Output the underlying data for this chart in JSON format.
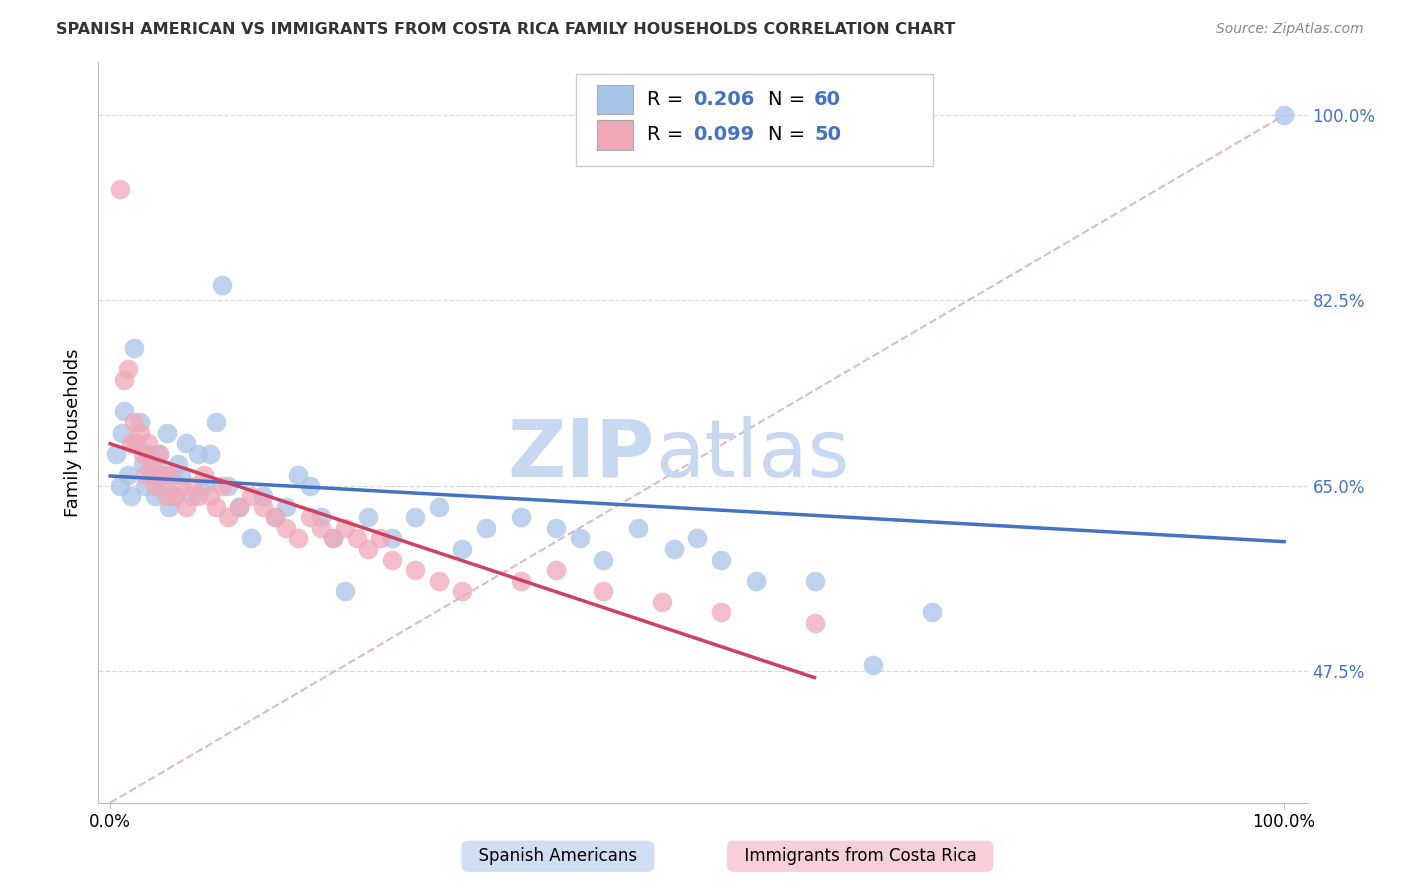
{
  "title": "SPANISH AMERICAN VS IMMIGRANTS FROM COSTA RICA FAMILY HOUSEHOLDS CORRELATION CHART",
  "source": "Source: ZipAtlas.com",
  "ylabel": "Family Households",
  "color_blue": "#a8c4e8",
  "color_pink": "#f0a8b8",
  "line_blue": "#4472c4",
  "line_pink": "#d04060",
  "line_dashed_color": "#c8a0a8",
  "r_blue": 0.206,
  "n_blue": 60,
  "r_pink": 0.099,
  "n_pink": 50,
  "ytick_vals": [
    0.475,
    0.65,
    0.825,
    1.0
  ],
  "ytick_labels": [
    "47.5%",
    "65.0%",
    "82.5%",
    "100.0%"
  ],
  "xtick_vals": [
    0.0,
    1.0
  ],
  "xtick_labels": [
    "0.0%",
    "100.0%"
  ],
  "watermark_zip_color": "#c8d8f0",
  "watermark_atlas_color": "#c8d8f0",
  "grid_color": "#d8d8d8",
  "legend_box_facecolor": "#ffffff",
  "legend_border_color": "#cccccc",
  "title_color": "#333333",
  "source_color": "#888888",
  "ylim_min": 0.35,
  "ylim_max": 1.05,
  "blue_x": [
    0.005,
    0.008,
    0.01,
    0.012,
    0.015,
    0.018,
    0.02,
    0.022,
    0.025,
    0.028,
    0.03,
    0.032,
    0.035,
    0.038,
    0.04,
    0.042,
    0.045,
    0.048,
    0.05,
    0.052,
    0.055,
    0.058,
    0.06,
    0.065,
    0.07,
    0.075,
    0.08,
    0.085,
    0.09,
    0.095,
    0.1,
    0.11,
    0.12,
    0.13,
    0.14,
    0.15,
    0.16,
    0.17,
    0.18,
    0.19,
    0.2,
    0.22,
    0.24,
    0.26,
    0.28,
    0.3,
    0.32,
    0.35,
    0.38,
    0.4,
    0.42,
    0.45,
    0.48,
    0.5,
    0.52,
    0.55,
    0.6,
    0.65,
    0.7,
    1.0
  ],
  "blue_y": [
    0.68,
    0.65,
    0.7,
    0.72,
    0.66,
    0.64,
    0.78,
    0.69,
    0.71,
    0.67,
    0.65,
    0.68,
    0.66,
    0.64,
    0.67,
    0.68,
    0.65,
    0.7,
    0.63,
    0.66,
    0.64,
    0.67,
    0.66,
    0.69,
    0.64,
    0.68,
    0.65,
    0.68,
    0.71,
    0.84,
    0.65,
    0.63,
    0.6,
    0.64,
    0.62,
    0.63,
    0.66,
    0.65,
    0.62,
    0.6,
    0.55,
    0.62,
    0.6,
    0.62,
    0.63,
    0.59,
    0.61,
    0.62,
    0.61,
    0.6,
    0.58,
    0.61,
    0.59,
    0.6,
    0.58,
    0.56,
    0.56,
    0.48,
    0.53,
    1.0
  ],
  "pink_x": [
    0.008,
    0.012,
    0.015,
    0.018,
    0.02,
    0.022,
    0.025,
    0.028,
    0.03,
    0.032,
    0.035,
    0.038,
    0.04,
    0.042,
    0.045,
    0.048,
    0.05,
    0.055,
    0.06,
    0.065,
    0.07,
    0.075,
    0.08,
    0.085,
    0.09,
    0.095,
    0.1,
    0.11,
    0.12,
    0.13,
    0.14,
    0.15,
    0.16,
    0.17,
    0.18,
    0.19,
    0.2,
    0.21,
    0.22,
    0.23,
    0.24,
    0.26,
    0.28,
    0.3,
    0.35,
    0.38,
    0.42,
    0.47,
    0.52,
    0.6
  ],
  "pink_y": [
    0.93,
    0.75,
    0.76,
    0.69,
    0.71,
    0.69,
    0.7,
    0.68,
    0.66,
    0.69,
    0.67,
    0.65,
    0.66,
    0.68,
    0.66,
    0.64,
    0.66,
    0.64,
    0.65,
    0.63,
    0.65,
    0.64,
    0.66,
    0.64,
    0.63,
    0.65,
    0.62,
    0.63,
    0.64,
    0.63,
    0.62,
    0.61,
    0.6,
    0.62,
    0.61,
    0.6,
    0.61,
    0.6,
    0.59,
    0.6,
    0.58,
    0.57,
    0.56,
    0.55,
    0.56,
    0.57,
    0.55,
    0.54,
    0.53,
    0.52
  ]
}
